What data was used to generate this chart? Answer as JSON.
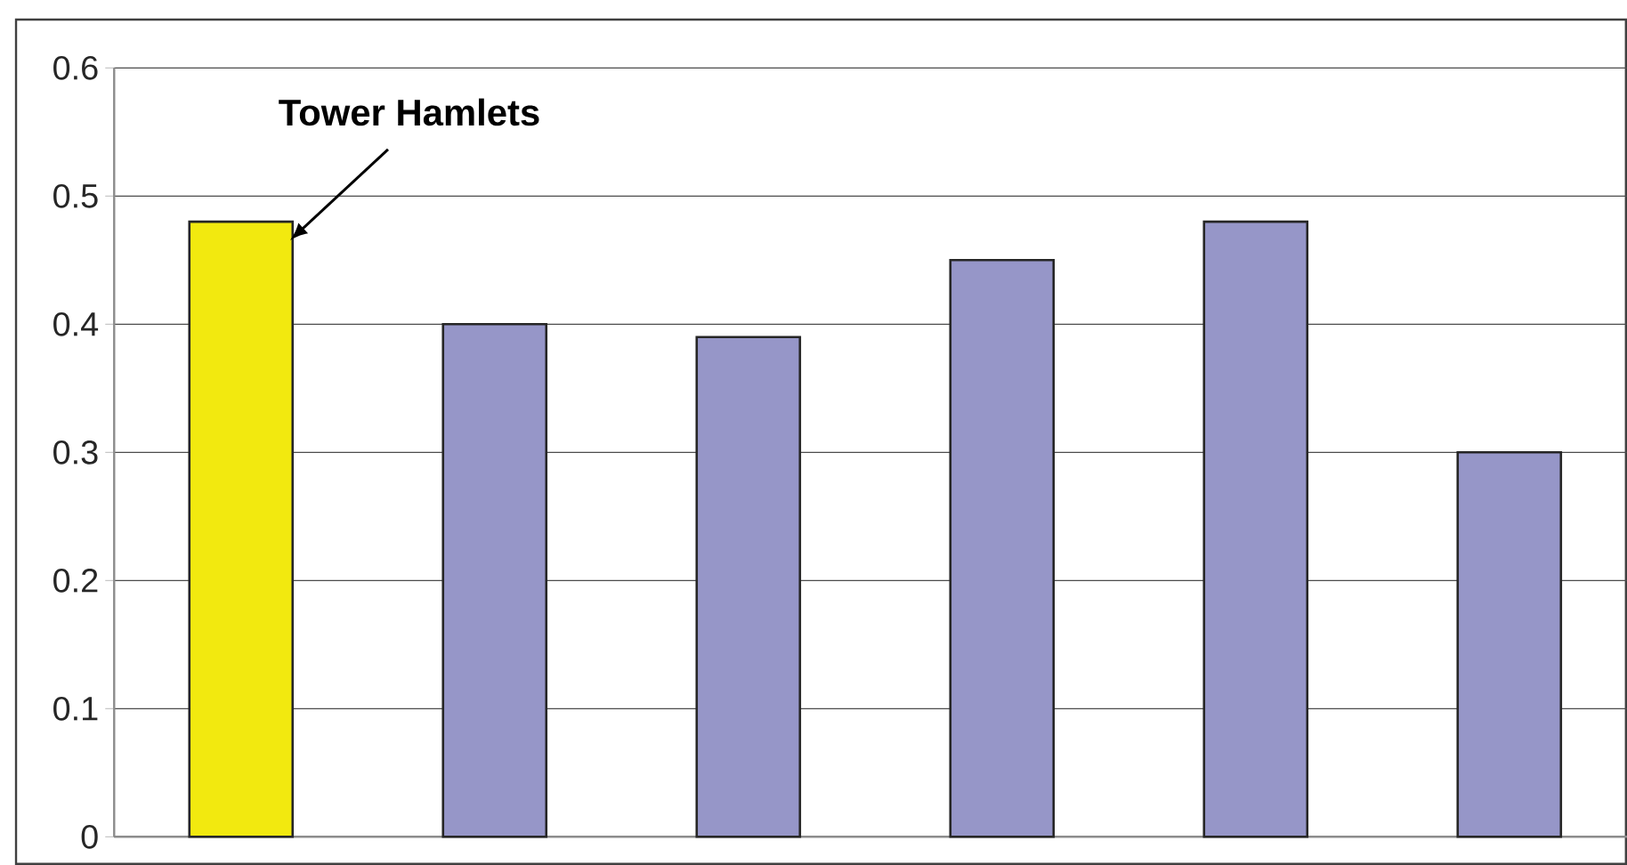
{
  "chart_data": {
    "type": "bar",
    "categories": [
      null,
      null,
      null,
      null,
      null,
      null
    ],
    "values": [
      0.48,
      0.4,
      0.39,
      0.45,
      0.48,
      0.3
    ],
    "colors": [
      "#f2e90f",
      "#9696c8",
      "#9696c8",
      "#9696c8",
      "#9696c8",
      "#9696c8"
    ],
    "ylim": [
      0,
      0.6
    ],
    "yticks": [
      0,
      0.1,
      0.2,
      0.3,
      0.4,
      0.5,
      0.6
    ],
    "grid": "y",
    "tick_labels": "y",
    "annotations": [
      "Tower Hamlets"
    ]
  }
}
